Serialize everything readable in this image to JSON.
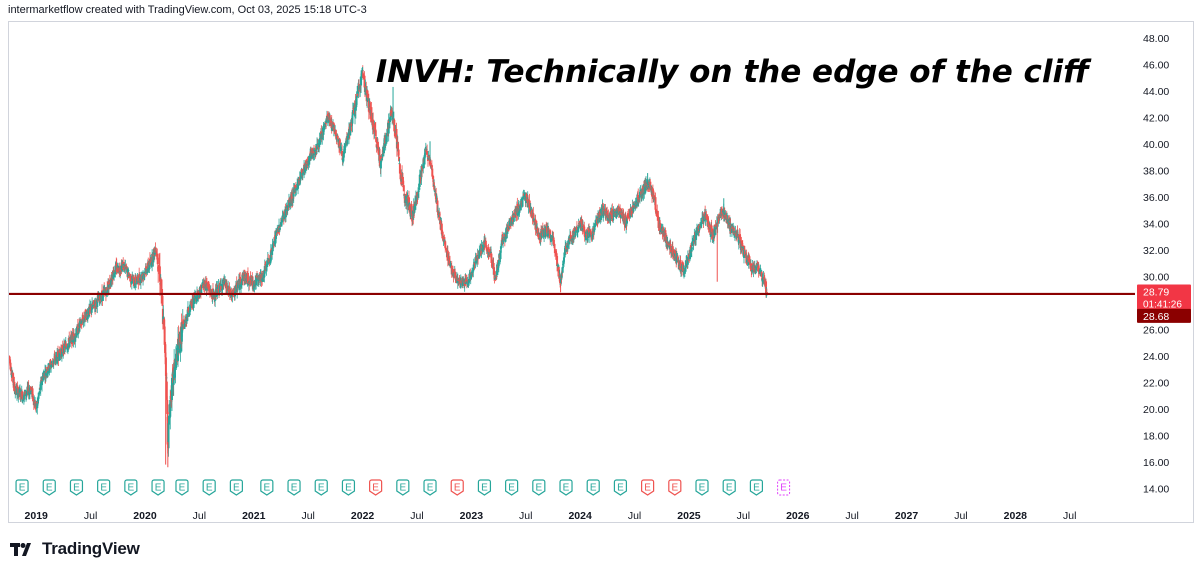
{
  "header": {
    "attribution": "intermarketflow created with TradingView.com, Oct 03, 2025 15:18 UTC-3"
  },
  "footer": {
    "brand": "TradingView",
    "logo_icon": "tradingview-logo-icon"
  },
  "colors": {
    "up": "#26a69a",
    "down": "#ef5350",
    "support": "#8b0000",
    "earnings_future": "#e040fb"
  },
  "chart_data": {
    "type": "candlestick",
    "symbol": "INVH",
    "title": "INVH: Technically on the edge of the cliff",
    "ylim": [
      12.6,
      49.2
    ],
    "yticks": [
      "48.00",
      "46.00",
      "44.00",
      "42.00",
      "40.00",
      "38.00",
      "36.00",
      "34.00",
      "32.00",
      "30.00",
      "28.00",
      "26.00",
      "24.00",
      "22.00",
      "20.00",
      "18.00",
      "16.00",
      "14.00"
    ],
    "xlim": [
      2018.75,
      2029.1
    ],
    "xticks": [
      {
        "x": 2019.0,
        "label": "2019",
        "bold": true
      },
      {
        "x": 2019.5,
        "label": "Jul",
        "bold": false
      },
      {
        "x": 2020.0,
        "label": "2020",
        "bold": true
      },
      {
        "x": 2020.5,
        "label": "Jul",
        "bold": false
      },
      {
        "x": 2021.0,
        "label": "2021",
        "bold": true
      },
      {
        "x": 2021.5,
        "label": "Jul",
        "bold": false
      },
      {
        "x": 2022.0,
        "label": "2022",
        "bold": true
      },
      {
        "x": 2022.5,
        "label": "Jul",
        "bold": false
      },
      {
        "x": 2023.0,
        "label": "2023",
        "bold": true
      },
      {
        "x": 2023.5,
        "label": "Jul",
        "bold": false
      },
      {
        "x": 2024.0,
        "label": "2024",
        "bold": true
      },
      {
        "x": 2024.5,
        "label": "Jul",
        "bold": false
      },
      {
        "x": 2025.0,
        "label": "2025",
        "bold": true
      },
      {
        "x": 2025.5,
        "label": "Jul",
        "bold": false
      },
      {
        "x": 2026.0,
        "label": "2026",
        "bold": true
      },
      {
        "x": 2026.5,
        "label": "Jul",
        "bold": false
      },
      {
        "x": 2027.0,
        "label": "2027",
        "bold": true
      },
      {
        "x": 2027.5,
        "label": "Jul",
        "bold": false
      },
      {
        "x": 2028.0,
        "label": "2028",
        "bold": true
      },
      {
        "x": 2028.5,
        "label": "Jul",
        "bold": false
      }
    ],
    "support_level": 28.68,
    "last_price": 28.79,
    "countdown": "01:41:26",
    "support_label": "28.68",
    "price_path": [
      [
        2018.75,
        24.0
      ],
      [
        2018.8,
        21.5
      ],
      [
        2018.88,
        21.0
      ],
      [
        2018.95,
        21.5
      ],
      [
        2019.0,
        20.0
      ],
      [
        2019.06,
        22.5
      ],
      [
        2019.15,
        23.5
      ],
      [
        2019.25,
        24.5
      ],
      [
        2019.35,
        25.5
      ],
      [
        2019.45,
        27.0
      ],
      [
        2019.55,
        28.0
      ],
      [
        2019.65,
        29.0
      ],
      [
        2019.72,
        30.5
      ],
      [
        2019.8,
        30.8
      ],
      [
        2019.9,
        29.5
      ],
      [
        2019.97,
        30.0
      ],
      [
        2020.05,
        31.0
      ],
      [
        2020.1,
        32.2
      ],
      [
        2020.14,
        30.0
      ],
      [
        2020.16,
        27.5
      ],
      [
        2020.19,
        24.0
      ],
      [
        2020.21,
        17.5
      ],
      [
        2020.23,
        20.5
      ],
      [
        2020.28,
        23.5
      ],
      [
        2020.33,
        25.5
      ],
      [
        2020.4,
        27.5
      ],
      [
        2020.47,
        28.5
      ],
      [
        2020.55,
        29.5
      ],
      [
        2020.63,
        28.5
      ],
      [
        2020.72,
        29.5
      ],
      [
        2020.8,
        28.5
      ],
      [
        2020.9,
        30.0
      ],
      [
        2021.0,
        29.5
      ],
      [
        2021.08,
        30.0
      ],
      [
        2021.15,
        31.5
      ],
      [
        2021.22,
        33.5
      ],
      [
        2021.3,
        35.0
      ],
      [
        2021.38,
        36.5
      ],
      [
        2021.45,
        38.0
      ],
      [
        2021.52,
        39.0
      ],
      [
        2021.6,
        40.0
      ],
      [
        2021.68,
        42.0
      ],
      [
        2021.75,
        41.0
      ],
      [
        2021.82,
        39.0
      ],
      [
        2021.88,
        41.0
      ],
      [
        2021.95,
        43.5
      ],
      [
        2022.0,
        45.5
      ],
      [
        2022.03,
        44.0
      ],
      [
        2022.08,
        42.0
      ],
      [
        2022.12,
        40.5
      ],
      [
        2022.17,
        38.5
      ],
      [
        2022.2,
        40.0
      ],
      [
        2022.27,
        42.5
      ],
      [
        2022.31,
        40.5
      ],
      [
        2022.35,
        37.5
      ],
      [
        2022.4,
        36.0
      ],
      [
        2022.46,
        34.5
      ],
      [
        2022.52,
        37.0
      ],
      [
        2022.58,
        39.5
      ],
      [
        2022.63,
        38.5
      ],
      [
        2022.68,
        35.5
      ],
      [
        2022.75,
        32.5
      ],
      [
        2022.82,
        30.5
      ],
      [
        2022.88,
        29.5
      ],
      [
        2022.93,
        29.5
      ],
      [
        2023.0,
        30.0
      ],
      [
        2023.05,
        31.5
      ],
      [
        2023.12,
        32.5
      ],
      [
        2023.18,
        31.5
      ],
      [
        2023.22,
        29.8
      ],
      [
        2023.28,
        32.5
      ],
      [
        2023.35,
        34.0
      ],
      [
        2023.42,
        35.0
      ],
      [
        2023.5,
        36.0
      ],
      [
        2023.55,
        35.0
      ],
      [
        2023.62,
        33.0
      ],
      [
        2023.7,
        33.5
      ],
      [
        2023.76,
        32.5
      ],
      [
        2023.82,
        29.5
      ],
      [
        2023.86,
        32.0
      ],
      [
        2023.92,
        33.0
      ],
      [
        2024.0,
        34.0
      ],
      [
        2024.05,
        33.0
      ],
      [
        2024.12,
        33.5
      ],
      [
        2024.2,
        35.0
      ],
      [
        2024.27,
        34.5
      ],
      [
        2024.35,
        35.0
      ],
      [
        2024.42,
        34.0
      ],
      [
        2024.5,
        35.5
      ],
      [
        2024.57,
        36.5
      ],
      [
        2024.63,
        37.0
      ],
      [
        2024.68,
        36.0
      ],
      [
        2024.72,
        34.0
      ],
      [
        2024.78,
        33.0
      ],
      [
        2024.85,
        32.0
      ],
      [
        2024.9,
        31.0
      ],
      [
        2024.95,
        30.5
      ],
      [
        2025.02,
        32.0
      ],
      [
        2025.08,
        33.5
      ],
      [
        2025.15,
        34.5
      ],
      [
        2025.22,
        33.0
      ],
      [
        2025.3,
        35.0
      ],
      [
        2025.37,
        34.0
      ],
      [
        2025.45,
        33.0
      ],
      [
        2025.52,
        31.5
      ],
      [
        2025.58,
        30.5
      ],
      [
        2025.63,
        30.8
      ],
      [
        2025.68,
        29.8
      ],
      [
        2025.72,
        28.7
      ]
    ],
    "volatility_zones": [
      [
        2020.12,
        2020.35,
        2.2
      ],
      [
        2021.9,
        2022.55,
        1.3
      ]
    ],
    "spikes": [
      {
        "x": 2020.19,
        "low": 15.8,
        "high": null
      },
      {
        "x": 2020.21,
        "low": 15.6,
        "high": null
      },
      {
        "x": 2022.0,
        "low": null,
        "high": 45.8
      },
      {
        "x": 2022.28,
        "low": null,
        "high": 44.3
      },
      {
        "x": 2021.99,
        "low": null,
        "high": 45.3
      },
      {
        "x": 2022.62,
        "low": null,
        "high": 40.2
      },
      {
        "x": 2024.62,
        "low": null,
        "high": 37.8
      },
      {
        "x": 2025.32,
        "low": null,
        "high": 35.9
      },
      {
        "x": 2023.82,
        "low": 28.8,
        "high": null
      },
      {
        "x": 2025.26,
        "low": 29.6,
        "high": null
      }
    ],
    "earnings": [
      {
        "x": 2018.87,
        "type": "beat"
      },
      {
        "x": 2019.12,
        "type": "beat"
      },
      {
        "x": 2019.37,
        "type": "beat"
      },
      {
        "x": 2019.62,
        "type": "beat"
      },
      {
        "x": 2019.87,
        "type": "beat"
      },
      {
        "x": 2020.12,
        "type": "beat"
      },
      {
        "x": 2020.34,
        "type": "beat"
      },
      {
        "x": 2020.59,
        "type": "beat"
      },
      {
        "x": 2020.84,
        "type": "beat"
      },
      {
        "x": 2021.12,
        "type": "beat"
      },
      {
        "x": 2021.37,
        "type": "beat"
      },
      {
        "x": 2021.62,
        "type": "beat"
      },
      {
        "x": 2021.87,
        "type": "beat"
      },
      {
        "x": 2022.12,
        "type": "miss"
      },
      {
        "x": 2022.37,
        "type": "beat"
      },
      {
        "x": 2022.62,
        "type": "beat"
      },
      {
        "x": 2022.87,
        "type": "miss"
      },
      {
        "x": 2023.12,
        "type": "beat"
      },
      {
        "x": 2023.37,
        "type": "beat"
      },
      {
        "x": 2023.62,
        "type": "beat"
      },
      {
        "x": 2023.87,
        "type": "beat"
      },
      {
        "x": 2024.12,
        "type": "beat"
      },
      {
        "x": 2024.37,
        "type": "beat"
      },
      {
        "x": 2024.62,
        "type": "miss"
      },
      {
        "x": 2024.87,
        "type": "miss"
      },
      {
        "x": 2025.12,
        "type": "beat"
      },
      {
        "x": 2025.37,
        "type": "beat"
      },
      {
        "x": 2025.62,
        "type": "beat"
      },
      {
        "x": 2025.87,
        "type": "future"
      }
    ],
    "earnings_label": "E"
  }
}
